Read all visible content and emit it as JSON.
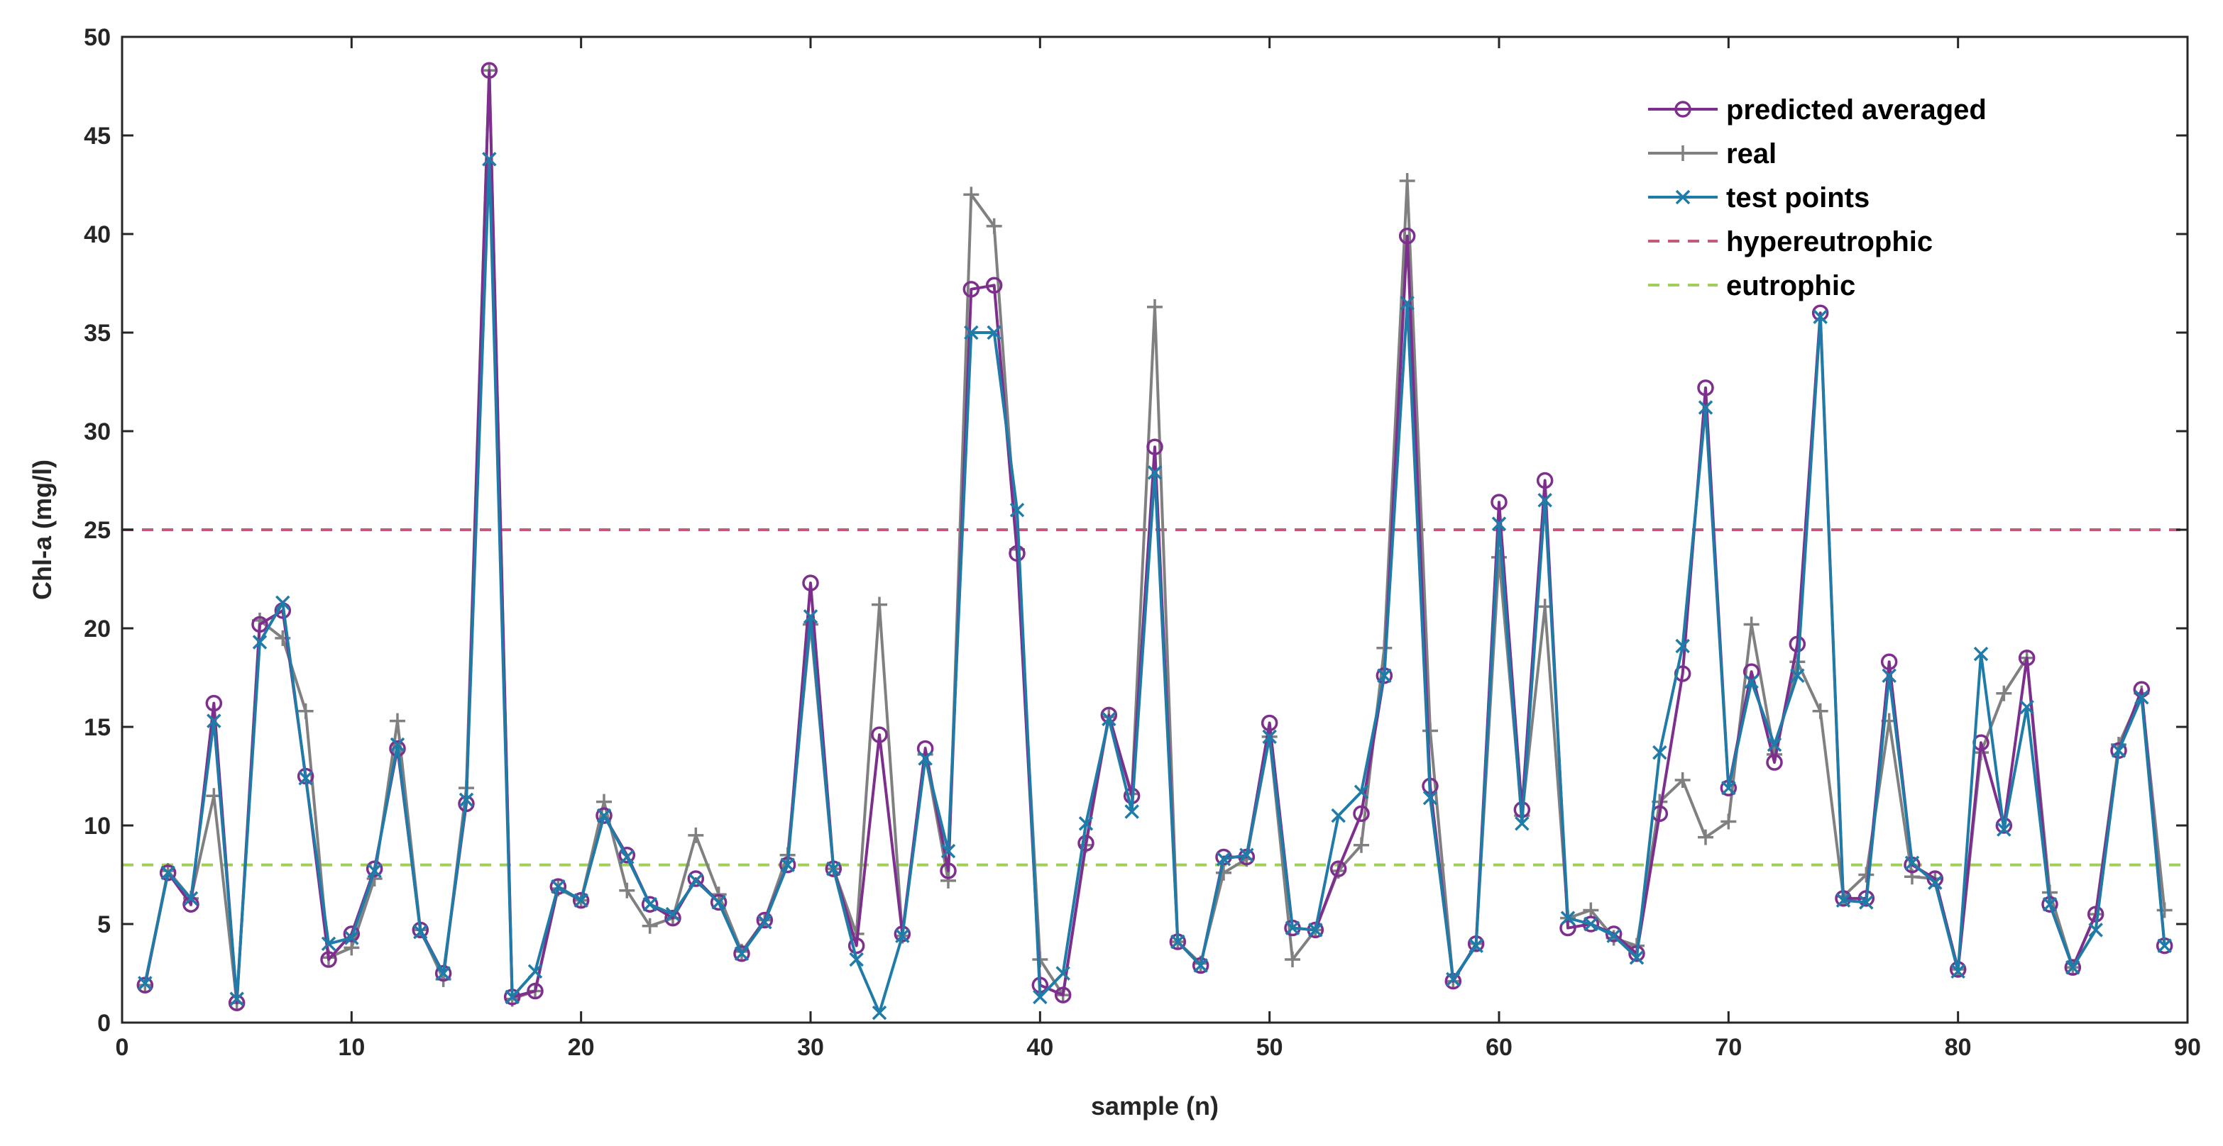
{
  "chart_data": {
    "type": "line",
    "title": "",
    "xlabel": "sample (n)",
    "ylabel": "Chl-a (mg/l)",
    "xlim": [
      0,
      90
    ],
    "ylim": [
      0,
      50
    ],
    "xticks": [
      0,
      10,
      20,
      30,
      40,
      50,
      60,
      70,
      80,
      90
    ],
    "yticks": [
      0,
      5,
      10,
      15,
      20,
      25,
      30,
      35,
      40,
      45,
      50
    ],
    "grid": false,
    "legend_position": "top-right",
    "x": [
      1,
      2,
      3,
      4,
      5,
      6,
      7,
      8,
      9,
      10,
      11,
      12,
      13,
      14,
      15,
      16,
      17,
      18,
      19,
      20,
      21,
      22,
      23,
      24,
      25,
      26,
      27,
      28,
      29,
      30,
      31,
      32,
      33,
      34,
      35,
      36,
      37,
      38,
      39,
      40,
      41,
      42,
      43,
      44,
      45,
      46,
      47,
      48,
      49,
      50,
      51,
      52,
      53,
      54,
      55,
      56,
      57,
      58,
      59,
      60,
      61,
      62,
      63,
      64,
      65,
      66,
      67,
      68,
      69,
      70,
      71,
      72,
      73,
      74,
      75,
      76,
      77,
      78,
      79,
      80,
      81,
      82,
      83,
      84,
      85,
      86,
      87,
      88,
      89
    ],
    "series": [
      {
        "name": "predicted averaged",
        "color": "#7e2f8e",
        "marker": "circle",
        "values": [
          1.9,
          7.6,
          6.0,
          16.2,
          1.0,
          20.2,
          20.9,
          12.5,
          3.2,
          4.5,
          7.8,
          13.9,
          4.7,
          2.5,
          11.1,
          48.3,
          1.3,
          1.6,
          6.9,
          6.2,
          10.5,
          8.5,
          6.0,
          5.3,
          7.3,
          6.1,
          3.5,
          5.2,
          8.0,
          22.3,
          7.8,
          3.9,
          14.6,
          4.5,
          13.9,
          7.7,
          37.2,
          37.4,
          23.8,
          1.9,
          1.4,
          9.1,
          15.6,
          11.5,
          29.2,
          4.1,
          2.9,
          8.4,
          8.4,
          15.2,
          4.8,
          4.7,
          7.8,
          10.6,
          17.6,
          39.9,
          12.0,
          2.1,
          4.0,
          26.4,
          10.8,
          27.5,
          4.8,
          5.0,
          4.5,
          3.5,
          10.6,
          17.7,
          32.2,
          11.9,
          17.8,
          13.2,
          19.2,
          36.0,
          6.3,
          6.3,
          18.3,
          8.0,
          7.3,
          2.7,
          14.2,
          10.0,
          18.5,
          6.0,
          2.8,
          5.5,
          13.8,
          16.9,
          3.9
        ]
      },
      {
        "name": "real",
        "color": "#808080",
        "marker": "plus",
        "values": [
          1.9,
          7.7,
          6.3,
          11.5,
          1.0,
          20.4,
          19.5,
          15.8,
          3.3,
          3.8,
          7.3,
          15.3,
          4.7,
          2.2,
          11.9,
          48.3,
          1.2,
          1.6,
          6.8,
          6.2,
          11.2,
          6.7,
          4.9,
          5.3,
          9.5,
          6.5,
          3.6,
          5.2,
          8.5,
          20.2,
          7.8,
          4.5,
          21.2,
          4.4,
          13.6,
          7.2,
          42.0,
          40.4,
          24.0,
          3.2,
          1.4,
          9.0,
          15.5,
          11.6,
          36.3,
          4.1,
          3.0,
          7.6,
          8.3,
          14.5,
          3.2,
          4.7,
          7.7,
          9.0,
          19.0,
          42.7,
          14.8,
          2.1,
          4.0,
          23.6,
          10.5,
          21.1,
          5.3,
          5.7,
          4.3,
          3.9,
          11.2,
          12.3,
          9.4,
          10.2,
          20.2,
          13.6,
          18.3,
          15.8,
          6.4,
          7.5,
          15.3,
          7.4,
          7.3,
          2.7,
          13.7,
          16.7,
          18.5,
          6.6,
          2.8,
          5.5,
          14.1,
          16.7,
          5.7
        ]
      },
      {
        "name": "test points",
        "color": "#1f7ba8",
        "marker": "x",
        "values": [
          2.0,
          7.6,
          6.3,
          15.3,
          1.2,
          19.3,
          21.3,
          12.4,
          4.0,
          4.3,
          7.7,
          14.1,
          4.6,
          2.5,
          11.3,
          43.8,
          1.3,
          2.6,
          6.9,
          6.2,
          10.5,
          8.4,
          6.0,
          5.5,
          7.2,
          6.1,
          3.5,
          5.1,
          8.0,
          20.6,
          7.8,
          3.2,
          0.5,
          4.4,
          13.4,
          8.7,
          35.0,
          35.0,
          26.0,
          1.3,
          2.5,
          10.1,
          15.4,
          10.7,
          27.9,
          4.1,
          2.9,
          8.3,
          8.5,
          14.5,
          4.8,
          4.7,
          10.5,
          11.7,
          17.6,
          36.5,
          11.4,
          2.2,
          3.9,
          25.3,
          10.1,
          26.5,
          5.3,
          5.0,
          4.4,
          3.3,
          13.7,
          19.1,
          31.2,
          11.9,
          17.3,
          14.1,
          17.6,
          35.8,
          6.2,
          6.1,
          17.6,
          8.1,
          7.1,
          2.6,
          18.7,
          9.8,
          16.0,
          6.0,
          2.8,
          4.7,
          13.8,
          16.5,
          3.9
        ]
      }
    ],
    "reference_lines": [
      {
        "name": "hypereutrophic",
        "y": 25,
        "color": "#c25a78",
        "style": "dashed"
      },
      {
        "name": "eutrophic",
        "y": 8,
        "color": "#9fcf5a",
        "style": "dashed"
      }
    ]
  }
}
